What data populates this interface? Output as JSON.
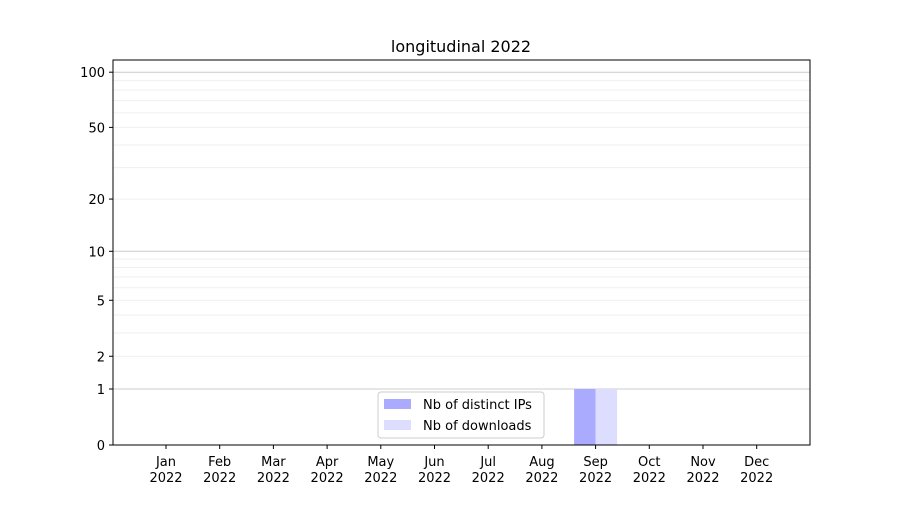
{
  "chart_data": {
    "type": "bar",
    "title": "longitudinal 2022",
    "xlabel": "",
    "ylabel": "",
    "yscale": "log(y+1)",
    "ylim": [
      0,
      116
    ],
    "y_ticks": [
      0,
      1,
      2,
      5,
      10,
      20,
      50,
      100
    ],
    "y_tick_labels": [
      "0",
      "1",
      "2",
      "5",
      "10",
      "20",
      "50",
      "100"
    ],
    "grid": true,
    "categories": [
      "Jan\n2022",
      "Feb\n2022",
      "Mar\n2022",
      "Apr\n2022",
      "May\n2022",
      "Jun\n2022",
      "Jul\n2022",
      "Aug\n2022",
      "Sep\n2022",
      "Oct\n2022",
      "Nov\n2022",
      "Dec\n2022"
    ],
    "series": [
      {
        "name": "Nb of distinct IPs",
        "color": "#aaaaff",
        "values": [
          0,
          0,
          0,
          0,
          0,
          0,
          0,
          0,
          1,
          0,
          0,
          0
        ]
      },
      {
        "name": "Nb of downloads",
        "color": "#ddddff",
        "values": [
          0,
          0,
          0,
          0,
          0,
          0,
          0,
          0,
          1,
          0,
          0,
          0
        ]
      }
    ],
    "legend_placement": "lower-center"
  }
}
